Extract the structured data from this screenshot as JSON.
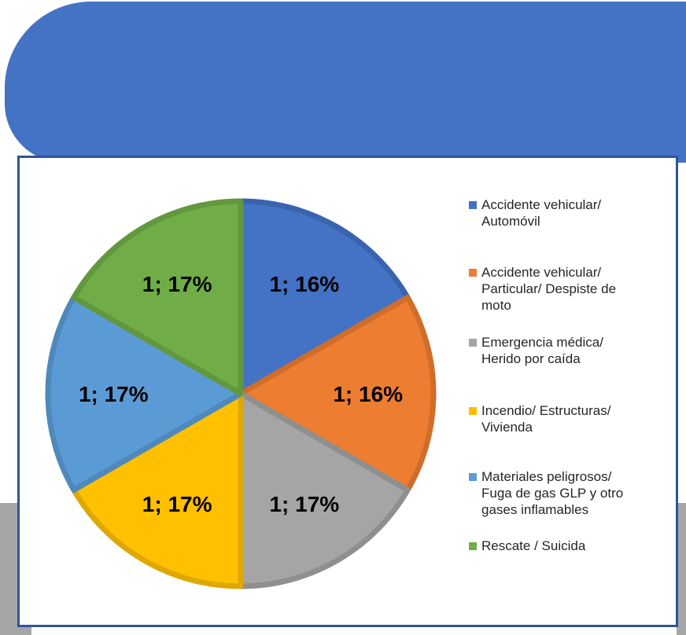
{
  "chart_data": {
    "type": "pie",
    "title": "",
    "slices": [
      {
        "label": "Accidente vehicular/\nAutomóvil",
        "value": 1,
        "percent": 16,
        "data_label": "1; 16%",
        "color": "#4472c4"
      },
      {
        "label": "Accidente vehicular/\nParticular/ Despiste de\nmoto",
        "value": 1,
        "percent": 16,
        "data_label": "1; 16%",
        "color": "#ed7d31"
      },
      {
        "label": "Emergencia médica/\nHerido por caída",
        "value": 1,
        "percent": 17,
        "data_label": "1; 17%",
        "color": "#a5a5a5"
      },
      {
        "label": "Incendio/ Estructuras/\nVivienda",
        "value": 1,
        "percent": 17,
        "data_label": "1; 17%",
        "color": "#ffc000"
      },
      {
        "label": "Materiales peligrosos/\nFuga de gas GLP y otro\ngases inflamables",
        "value": 1,
        "percent": 17,
        "data_label": "1; 17%",
        "color": "#5b9bd5"
      },
      {
        "label": "Rescate / Suicida",
        "value": 1,
        "percent": 17,
        "data_label": "1; 17%",
        "color": "#70ad47"
      }
    ],
    "legend_position": "right",
    "start_angle": "12 o'clock",
    "direction": "clockwise"
  },
  "colors": {
    "banner": "#4472c4",
    "frame_border": "#2f5597",
    "accent_gray": "#a6a6a6"
  }
}
